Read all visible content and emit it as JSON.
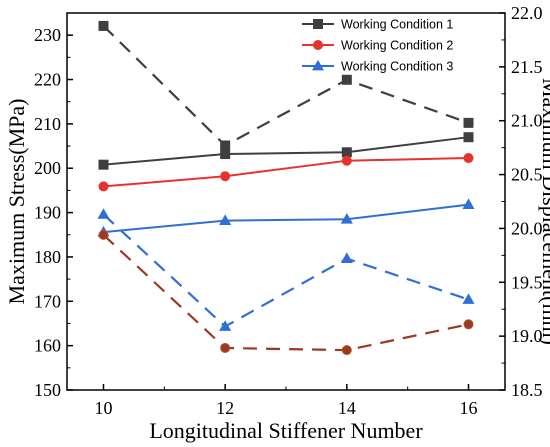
{
  "chart_data": {
    "type": "line",
    "x": [
      10,
      12,
      14,
      16
    ],
    "xlabel": "Longitudinal Stiffener Number",
    "ylabel_left": "Maximum Stress(MPa)",
    "ylabel_right": "Maximum Displacement(mm)",
    "ylim_left": [
      150,
      235
    ],
    "ylim_right": [
      18.5,
      22.0
    ],
    "yticks_left": [
      150,
      160,
      170,
      180,
      190,
      200,
      210,
      220,
      230
    ],
    "yticks_right": [
      18.5,
      19.0,
      19.5,
      20.0,
      20.5,
      21.0,
      21.5,
      22.0
    ],
    "xticks": [
      10,
      12,
      14,
      16
    ],
    "legend_position": "top-right",
    "series": [
      {
        "name": "Working Condition 1",
        "marker": "square",
        "color": "#3f3f3f",
        "axis": "left",
        "style": "solid",
        "values": [
          200.8,
          203.2,
          203.6,
          207.0
        ],
        "in_legend": true
      },
      {
        "name": "Working Condition 2",
        "marker": "circle",
        "color": "#e8322f",
        "axis": "left",
        "style": "solid",
        "values": [
          195.9,
          198.2,
          201.7,
          202.3
        ],
        "in_legend": true
      },
      {
        "name": "Working Condition 3",
        "marker": "triangle",
        "color": "#2f6fd6",
        "axis": "left",
        "style": "solid",
        "values": [
          185.6,
          188.2,
          188.5,
          191.8
        ],
        "in_legend": true
      },
      {
        "marker": "square",
        "color": "#3f3f3f",
        "axis": "right",
        "style": "dashed",
        "values": [
          21.88,
          20.77,
          21.38,
          20.98
        ],
        "in_legend": false
      },
      {
        "marker": "circle",
        "color": "#9b3a22",
        "edge": "#b0502e",
        "axis": "right",
        "style": "dashed",
        "values": [
          19.94,
          18.89,
          18.87,
          19.11
        ],
        "in_legend": false
      },
      {
        "marker": "triangle",
        "color": "#2f6fd6",
        "axis": "right",
        "style": "dashed",
        "values": [
          20.13,
          19.09,
          19.72,
          19.34
        ],
        "in_legend": false
      }
    ]
  }
}
